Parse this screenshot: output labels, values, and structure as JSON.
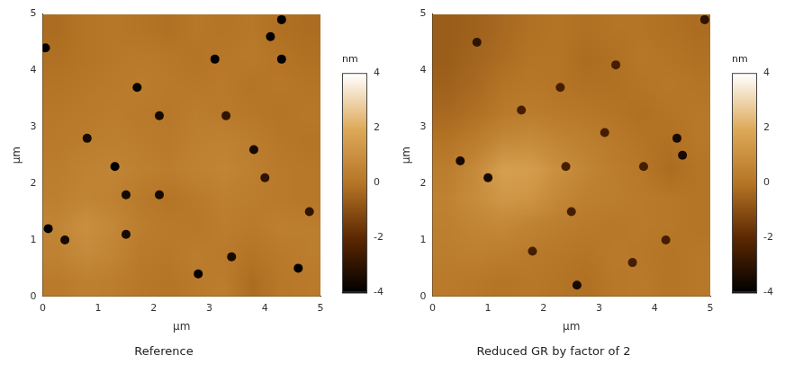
{
  "chart_data": [
    {
      "type": "heatmap",
      "title": "Reference",
      "x_label": "µm",
      "y_label": "µm",
      "xlim": [
        0,
        5
      ],
      "ylim": [
        0,
        5
      ],
      "xticks": [
        0,
        1,
        2,
        3,
        4,
        5
      ],
      "yticks": [
        0,
        1,
        2,
        3,
        4,
        5
      ],
      "grid": false,
      "colorbar": {
        "label": "nm",
        "range": [
          -4,
          4
        ],
        "ticks": [
          -4,
          -2,
          0,
          2,
          4
        ]
      },
      "cells": {
        "x": [
          0.25,
          0.75,
          1.25,
          1.75,
          2.25,
          2.75,
          3.25,
          3.75,
          4.25,
          4.75
        ],
        "y": [
          0.25,
          0.75,
          1.25,
          1.75,
          2.25,
          2.75,
          3.25,
          3.75,
          4.25,
          4.75
        ],
        "z": [
          [
            0.2,
            0.4,
            0.3,
            0.1,
            0.0,
            0.2,
            0.3,
            -0.2,
            0.1,
            0.2
          ],
          [
            0.5,
            0.8,
            0.6,
            0.2,
            0.1,
            0.3,
            0.2,
            0.0,
            0.2,
            0.3
          ],
          [
            0.6,
            1.0,
            0.7,
            0.3,
            0.2,
            0.1,
            0.3,
            0.2,
            0.4,
            0.3
          ],
          [
            0.4,
            0.6,
            0.5,
            0.2,
            0.0,
            0.2,
            0.4,
            0.3,
            0.2,
            0.1
          ],
          [
            0.3,
            0.5,
            0.6,
            0.4,
            0.3,
            0.5,
            0.6,
            0.4,
            0.2,
            0.1
          ],
          [
            0.2,
            0.3,
            0.4,
            0.3,
            0.2,
            0.4,
            0.5,
            0.3,
            0.1,
            0.0
          ],
          [
            0.1,
            0.2,
            0.3,
            0.2,
            0.1,
            0.3,
            0.2,
            0.1,
            0.0,
            0.1
          ],
          [
            0.0,
            0.1,
            0.2,
            0.3,
            0.2,
            0.1,
            0.2,
            0.0,
            0.1,
            0.0
          ],
          [
            -0.1,
            0.0,
            0.1,
            0.2,
            0.1,
            0.0,
            0.1,
            0.2,
            0.0,
            -0.1
          ],
          [
            -0.2,
            0.0,
            0.1,
            0.0,
            -0.1,
            0.1,
            0.0,
            0.1,
            -0.1,
            -0.2
          ]
        ]
      },
      "pits": {
        "x": [
          0.05,
          1.7,
          0.8,
          1.3,
          2.1,
          3.1,
          3.3,
          4.3,
          4.1,
          4.3,
          3.8,
          4.0,
          1.5,
          2.1,
          1.5,
          0.1,
          0.4,
          3.4,
          2.8,
          4.6,
          4.8
        ],
        "y": [
          4.4,
          3.7,
          2.8,
          2.3,
          3.2,
          4.2,
          3.2,
          4.2,
          4.6,
          4.9,
          2.6,
          2.1,
          1.8,
          1.8,
          1.1,
          1.2,
          1.0,
          0.7,
          0.4,
          0.5,
          1.5
        ],
        "z": [
          -4,
          -4,
          -3.5,
          -4,
          -3.5,
          -4,
          -3,
          -4,
          -4,
          -4,
          -3.5,
          -3,
          -3.5,
          -3.5,
          -3.5,
          -4,
          -3.5,
          -3.5,
          -4,
          -4,
          -3
        ]
      }
    },
    {
      "type": "heatmap",
      "title": "Reduced GR by factor of 2",
      "x_label": "µm",
      "y_label": "µm",
      "xlim": [
        0,
        5
      ],
      "ylim": [
        0,
        5
      ],
      "xticks": [
        0,
        1,
        2,
        3,
        4,
        5
      ],
      "yticks": [
        0,
        1,
        2,
        3,
        4,
        5
      ],
      "grid": false,
      "colorbar": {
        "label": "nm",
        "range": [
          -4,
          4
        ],
        "ticks": [
          -4,
          -2,
          0,
          2,
          4
        ]
      },
      "cells": {
        "x": [
          0.25,
          0.75,
          1.25,
          1.75,
          2.25,
          2.75,
          3.25,
          3.75,
          4.25,
          4.75
        ],
        "y": [
          0.25,
          0.75,
          1.25,
          1.75,
          2.25,
          2.75,
          3.25,
          3.75,
          4.25,
          4.75
        ],
        "z": [
          [
            0.2,
            0.1,
            0.0,
            0.1,
            0.0,
            -0.1,
            0.1,
            0.2,
            0.0,
            0.1
          ],
          [
            0.3,
            0.4,
            0.3,
            0.2,
            0.1,
            0.0,
            0.2,
            0.1,
            0.0,
            0.1
          ],
          [
            0.4,
            0.6,
            0.7,
            0.5,
            0.3,
            0.2,
            0.1,
            0.2,
            0.1,
            0.0
          ],
          [
            0.5,
            0.9,
            1.3,
            1.2,
            0.7,
            0.4,
            0.3,
            0.2,
            0.1,
            0.0
          ],
          [
            0.3,
            0.8,
            1.6,
            1.5,
            1.0,
            0.6,
            0.3,
            0.1,
            -0.2,
            0.0
          ],
          [
            0.0,
            0.3,
            0.8,
            0.9,
            0.6,
            0.4,
            0.2,
            0.0,
            -0.1,
            0.1
          ],
          [
            -0.3,
            -0.1,
            0.2,
            0.3,
            0.2,
            0.1,
            0.0,
            -0.1,
            0.0,
            0.1
          ],
          [
            -0.5,
            -0.3,
            0.0,
            0.1,
            0.0,
            -0.1,
            -0.1,
            0.0,
            0.1,
            0.0
          ],
          [
            -0.6,
            -0.4,
            -0.2,
            0.0,
            0.0,
            -0.2,
            -0.1,
            0.1,
            0.0,
            -0.1
          ],
          [
            -0.6,
            -0.5,
            -0.3,
            -0.1,
            0.0,
            -0.1,
            0.0,
            0.0,
            -0.1,
            -0.2
          ]
        ]
      },
      "pits": {
        "x": [
          0.8,
          2.3,
          1.6,
          0.5,
          1.0,
          2.4,
          2.5,
          3.1,
          3.3,
          4.4,
          4.5,
          3.8,
          4.2,
          3.6,
          2.6,
          4.9,
          1.8
        ],
        "y": [
          4.5,
          3.7,
          3.3,
          2.4,
          2.1,
          2.3,
          1.5,
          2.9,
          4.1,
          2.8,
          2.5,
          2.3,
          1.0,
          0.6,
          0.2,
          4.9,
          0.8
        ],
        "z": [
          -3,
          -2.5,
          -2.5,
          -3.5,
          -3.5,
          -2.5,
          -2.5,
          -2.5,
          -2.5,
          -3.5,
          -3.5,
          -2.5,
          -2.5,
          -2.5,
          -3.5,
          -3,
          -2.5
        ]
      }
    }
  ]
}
